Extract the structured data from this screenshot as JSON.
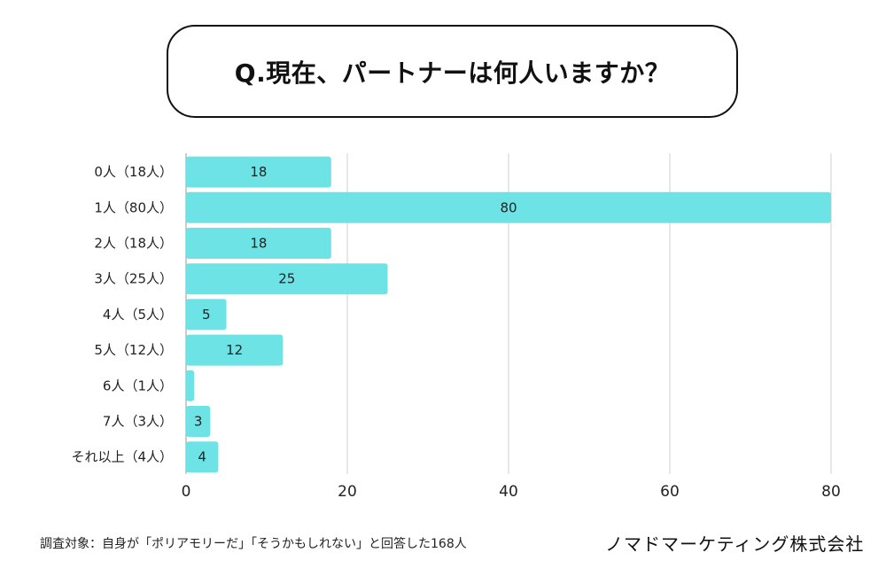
{
  "title": "Q.現在、パートナーは何人いますか？",
  "chart_data": {
    "type": "bar",
    "orientation": "horizontal",
    "title": "Q.現在、パートナーは何人いますか？",
    "categories": [
      "0人（18人）",
      "1人（80人）",
      "2人（18人）",
      "3人（25人）",
      "4人（5人）",
      "5人（12人）",
      "6人（1人）",
      "7人（3人）",
      "それ以上（4人）"
    ],
    "values": [
      18,
      80,
      18,
      25,
      5,
      12,
      1,
      3,
      4
    ],
    "data_labels": [
      "18",
      "80",
      "18",
      "25",
      "5",
      "12",
      "",
      "3",
      "4"
    ],
    "xlim": [
      0,
      80
    ],
    "xticks": [
      0,
      20,
      40,
      60,
      80
    ],
    "xtick_labels": [
      "0",
      "20",
      "40",
      "60",
      "80"
    ],
    "xlabel": "",
    "ylabel": "",
    "grid": true,
    "bar_color": "#6de3e6",
    "grid_color": "#d0d0d0"
  },
  "footer": {
    "note": "調査対象：自身が「ポリアモリーだ」「そうかもしれない」と回答した168人",
    "company": "ノマドマーケティング株式会社"
  }
}
